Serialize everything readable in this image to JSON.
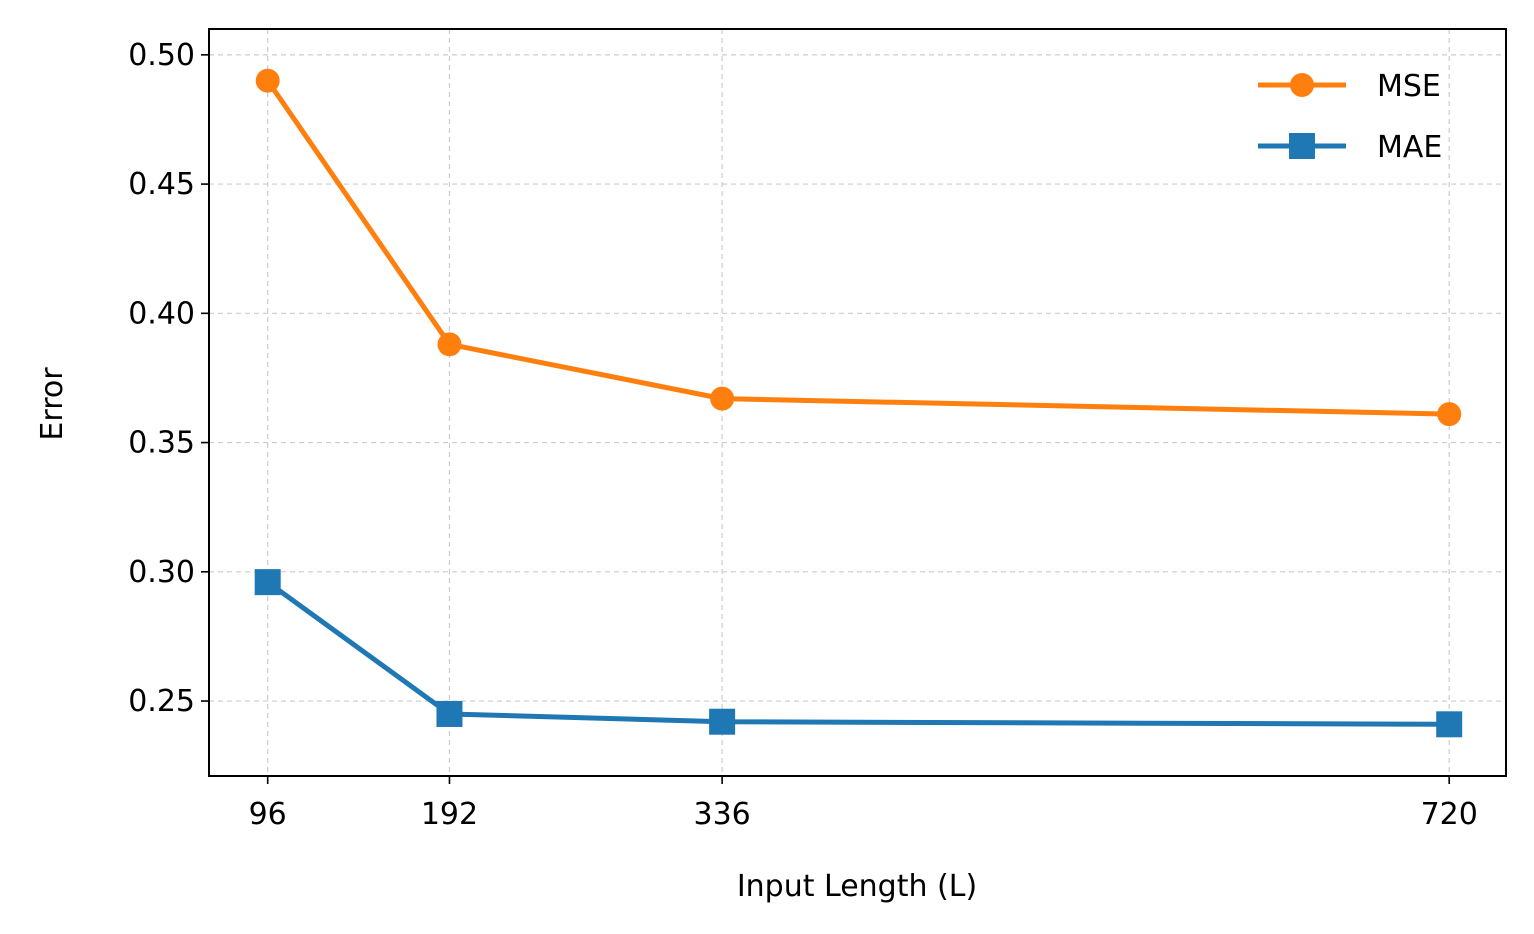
{
  "chart_data": {
    "type": "line",
    "title": "",
    "xlabel": "Input Length (L)",
    "ylabel": "Error",
    "x": [
      96,
      192,
      336,
      720
    ],
    "xticks": [
      "96",
      "192",
      "336",
      "720"
    ],
    "yticks": [
      "0.25",
      "0.30",
      "0.35",
      "0.40",
      "0.45",
      "0.50"
    ],
    "xlim": [
      65,
      750
    ],
    "ylim": [
      0.221,
      0.51
    ],
    "grid": true,
    "legend_position": "top-right",
    "series": [
      {
        "name": "MSE",
        "values": [
          0.49,
          0.388,
          0.367,
          0.361
        ],
        "color": "#ff7f0e",
        "marker": "circle"
      },
      {
        "name": "MAE",
        "values": [
          0.296,
          0.245,
          0.242,
          0.241
        ],
        "color": "#1f77b4",
        "marker": "square"
      }
    ]
  }
}
